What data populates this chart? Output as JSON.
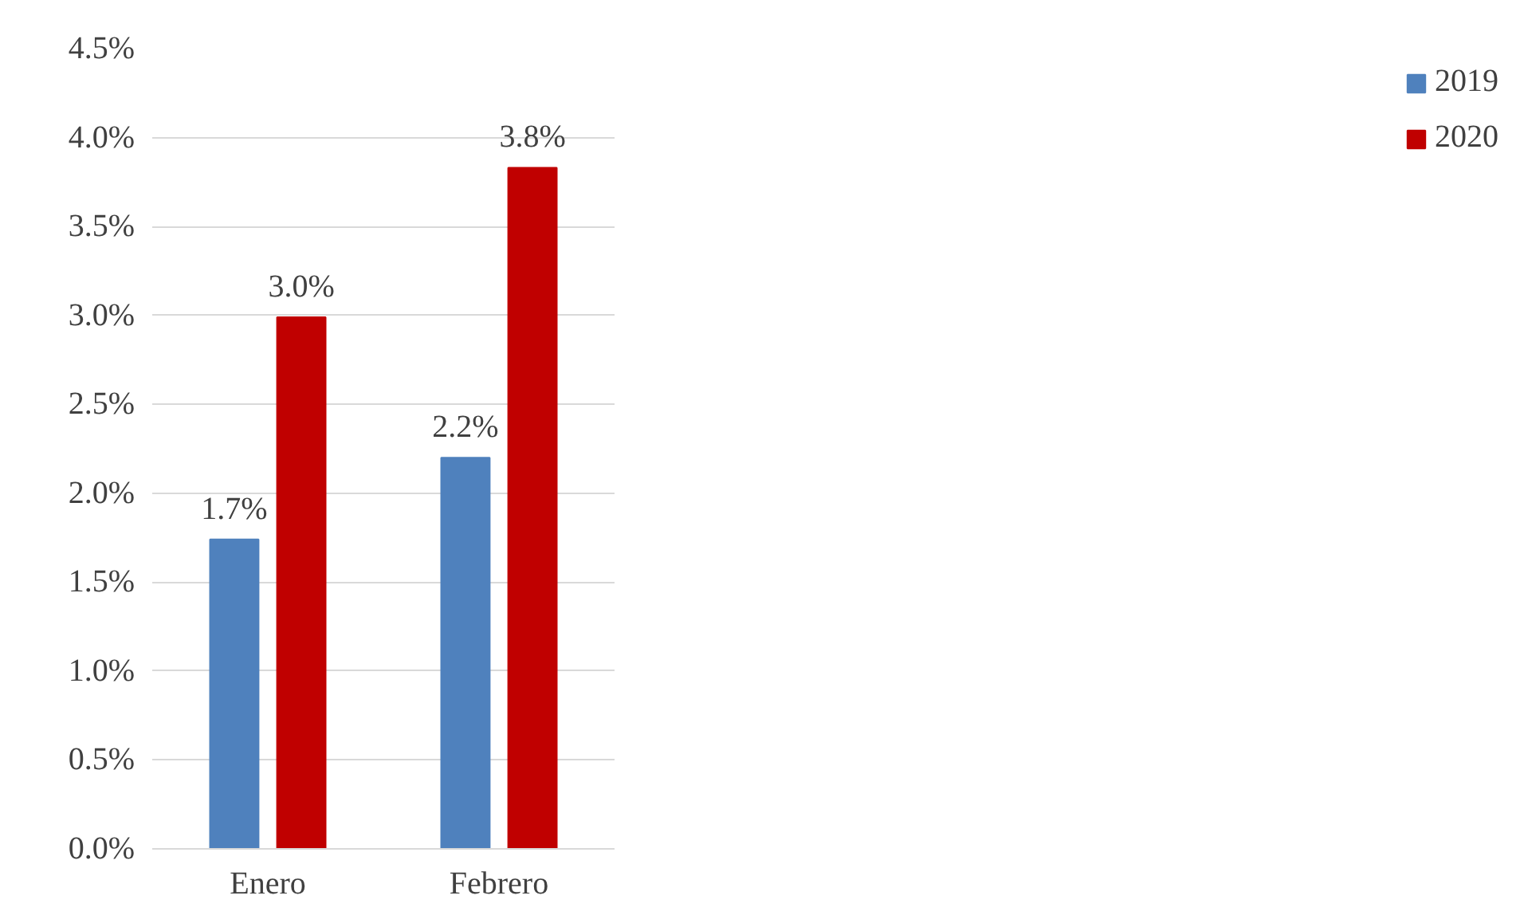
{
  "chart_data": {
    "type": "bar",
    "categories": [
      "Enero",
      "Febrero"
    ],
    "series": [
      {
        "name": "2019",
        "color": "#4f81bd",
        "values": [
          1.74,
          2.2
        ],
        "value_labels": [
          "1.7%",
          "2.2%"
        ]
      },
      {
        "name": "2020",
        "color": "#c00000",
        "values": [
          2.99,
          3.83
        ],
        "value_labels": [
          "3.0%",
          "3.8%"
        ]
      }
    ],
    "ylim": [
      0,
      4.5
    ],
    "yticks": [
      {
        "value": 0,
        "label": "0.0%"
      },
      {
        "value": 0.5,
        "label": "0.5%"
      },
      {
        "value": 1,
        "label": "1.0%"
      },
      {
        "value": 1.5,
        "label": "1.5%"
      },
      {
        "value": 2,
        "label": "2.0%"
      },
      {
        "value": 2.5,
        "label": "2.5%"
      },
      {
        "value": 3,
        "label": "3.0%"
      },
      {
        "value": 3.5,
        "label": "3.5%"
      },
      {
        "value": 4,
        "label": "4.0%"
      },
      {
        "value": 4.5,
        "label": "4.5%"
      }
    ],
    "grid": "y",
    "legend": "right"
  }
}
